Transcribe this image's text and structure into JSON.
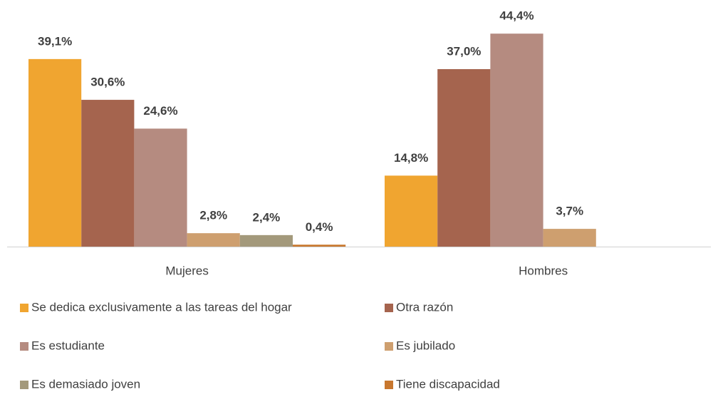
{
  "chart_data": {
    "type": "bar",
    "categories": [
      "Mujeres",
      "Hombres"
    ],
    "series": [
      {
        "name": "Se dedica exclusivamente a las tareas del hogar",
        "color": "#F0A530",
        "values": [
          39.1,
          14.8
        ],
        "value_labels": [
          "39,1%",
          "14,8%"
        ]
      },
      {
        "name": "Otra razón",
        "color": "#A5644E",
        "values": [
          30.6,
          37.0
        ],
        "value_labels": [
          "30,6%",
          "37,0%"
        ]
      },
      {
        "name": "Es estudiante",
        "color": "#B58B80",
        "values": [
          24.6,
          44.4
        ],
        "value_labels": [
          "24,6%",
          "44,4%"
        ]
      },
      {
        "name": "Es jubilado",
        "color": "#CE9F6F",
        "values": [
          2.8,
          3.7
        ],
        "value_labels": [
          "2,8%",
          "3,7%"
        ]
      },
      {
        "name": "Es demasiado joven",
        "color": "#A3997B",
        "values": [
          2.4,
          null
        ],
        "value_labels": [
          "2,4%",
          null
        ]
      },
      {
        "name": "Tiene discapacidad",
        "color": "#C8772E",
        "values": [
          0.4,
          null
        ],
        "value_labels": [
          "0,4%",
          null
        ]
      }
    ]
  }
}
